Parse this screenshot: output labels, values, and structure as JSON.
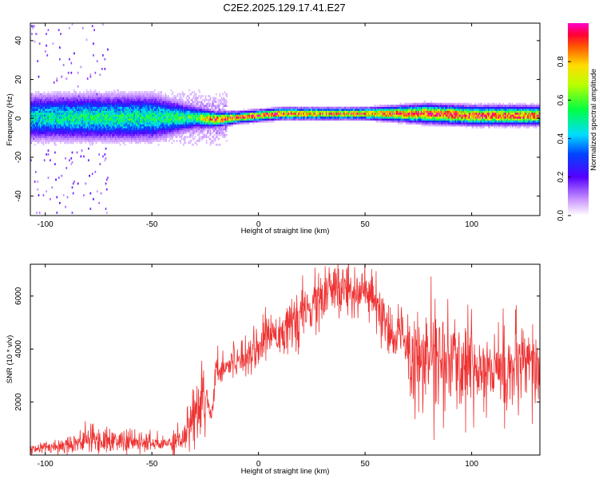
{
  "title": "C2E2.2025.129.17.41.E27",
  "chart_data": [
    {
      "type": "heatmap",
      "xlabel": "Height of straight line (km)",
      "ylabel": "Frequency (Hz)",
      "xlim": [
        -107,
        132
      ],
      "ylim": [
        -50,
        49
      ],
      "xticks": [
        -100,
        -50,
        0,
        50,
        100
      ],
      "yticks": [
        -40,
        -20,
        0,
        20,
        40
      ],
      "grid": false,
      "colorbar": {
        "label": "Normalized spectral amplitude",
        "range": [
          0,
          1
        ],
        "ticks": [
          "0.0",
          "0.2",
          "0.4",
          "0.6",
          "0.8"
        ]
      },
      "ridge": {
        "description_points_x": [
          -107,
          -80,
          -50,
          -30,
          -20,
          -10,
          0,
          10,
          30,
          50,
          78,
          100,
          132
        ],
        "center_hz": [
          0,
          0,
          0,
          0,
          -1,
          0,
          1,
          2,
          2,
          2,
          2,
          1,
          1
        ],
        "spread_hz": [
          6,
          6,
          6,
          3,
          2,
          1.5,
          1.5,
          1.5,
          1.5,
          1.5,
          2.5,
          2.5,
          2.5
        ],
        "peak_amplitude": [
          0.45,
          0.5,
          0.5,
          0.55,
          0.9,
          0.9,
          0.9,
          0.9,
          0.85,
          0.85,
          0.9,
          0.9,
          0.85
        ]
      }
    },
    {
      "type": "line",
      "xlabel": "Height of straight line (km)",
      "ylabel": "SNR (10 * v/v)",
      "xlim": [
        -107,
        132
      ],
      "ylim": [
        0,
        7200
      ],
      "xticks": [
        -100,
        -50,
        0,
        50,
        100
      ],
      "yticks": [
        2000,
        4000,
        6000
      ],
      "grid": false,
      "series_color": "#ee3333",
      "envelope": {
        "x": [
          -107,
          -90,
          -80,
          -60,
          -45,
          -35,
          -30,
          -25,
          -22,
          -20,
          -10,
          0,
          5,
          15,
          25,
          35,
          45,
          50,
          55,
          60,
          63,
          67,
          70,
          72,
          75,
          80,
          90,
          100,
          110,
          120,
          132
        ],
        "y": [
          200,
          400,
          600,
          500,
          400,
          700,
          1500,
          2400,
          1500,
          3200,
          3600,
          4100,
          4600,
          4800,
          5600,
          6200,
          6300,
          6100,
          5700,
          4700,
          4200,
          4900,
          4100,
          3100,
          3500,
          3800,
          3400,
          3400,
          3200,
          3200,
          3200
        ]
      }
    }
  ]
}
